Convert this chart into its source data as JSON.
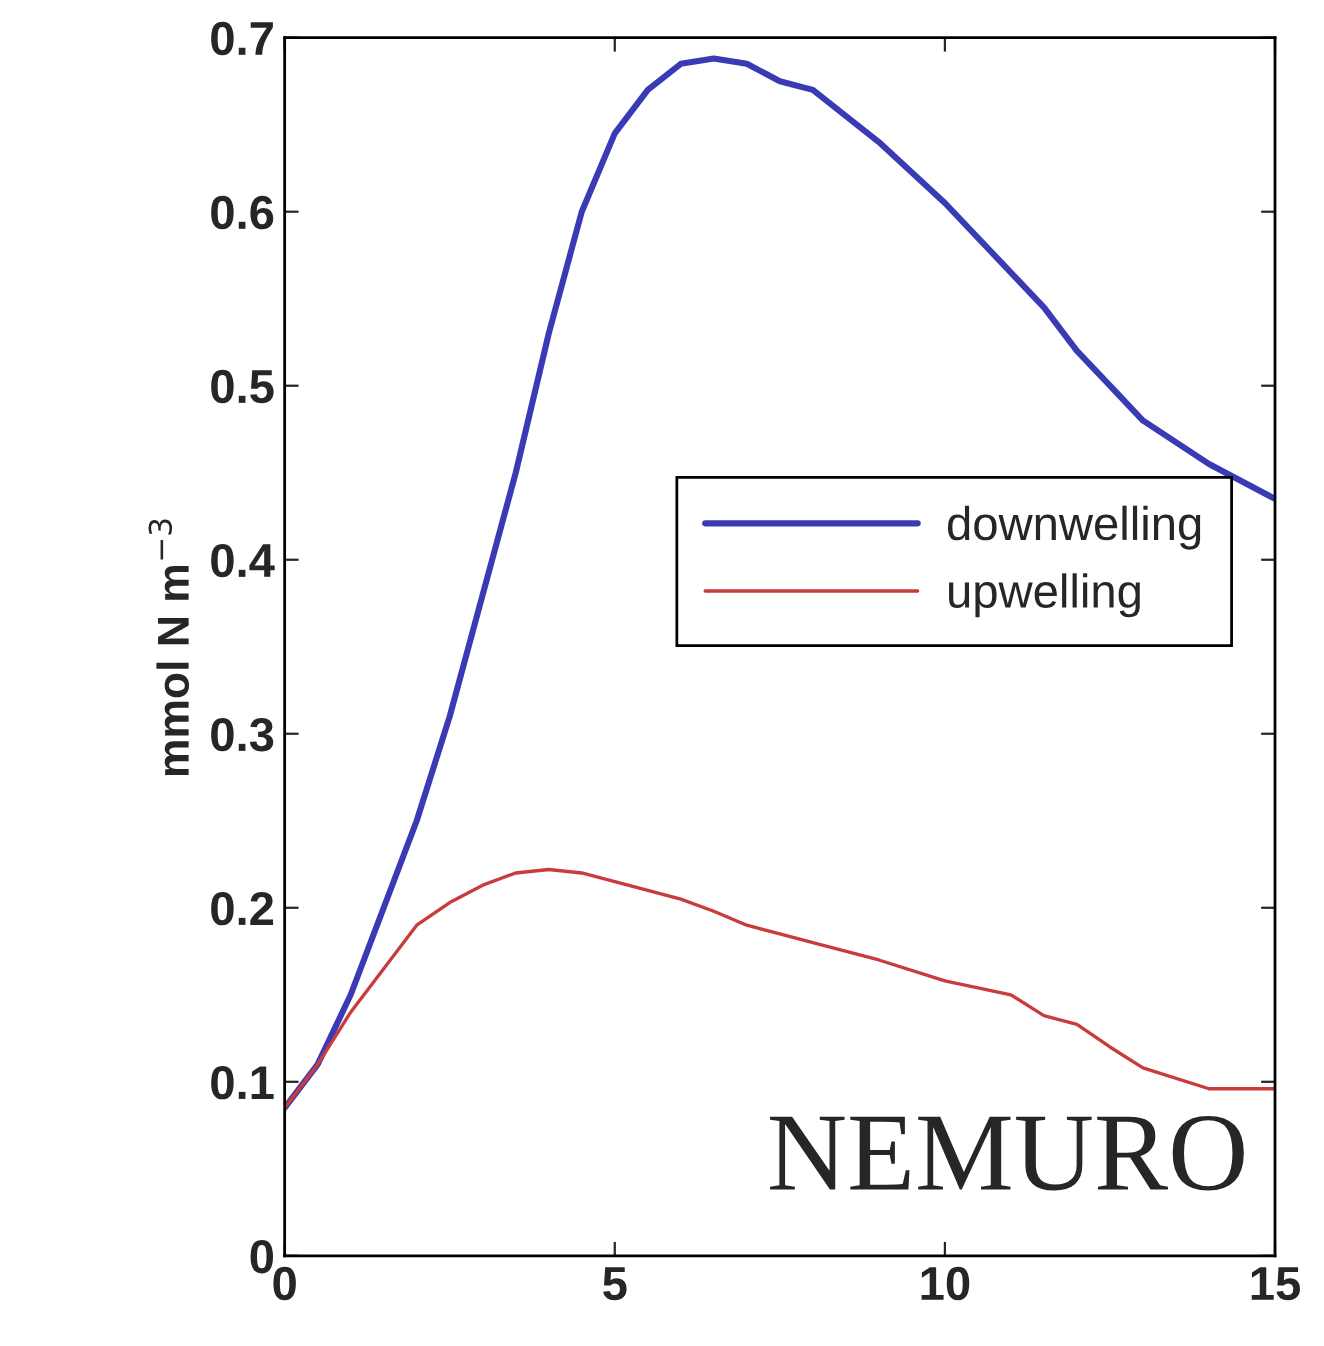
{
  "chart_data": {
    "type": "line",
    "ylabel": "mmol N m$^{−3}$",
    "x": [
      0,
      0.5,
      1,
      1.5,
      2,
      2.5,
      3,
      3.5,
      4,
      4.5,
      5,
      5.5,
      6,
      6.5,
      7,
      7.5,
      8,
      9,
      10,
      11,
      11.5,
      12,
      12.5,
      13,
      14,
      15
    ],
    "series": [
      {
        "name": "downwelling",
        "color": "#3a3ab4",
        "values": [
          0.085,
          0.11,
          0.15,
          0.2,
          0.25,
          0.31,
          0.38,
          0.45,
          0.53,
          0.6,
          0.645,
          0.67,
          0.685,
          0.688,
          0.685,
          0.675,
          0.67,
          0.64,
          0.605,
          0.565,
          0.545,
          0.52,
          0.5,
          0.48,
          0.455,
          0.435
        ]
      },
      {
        "name": "upwelling",
        "color": "#c83c3c",
        "values": [
          0.085,
          0.11,
          0.14,
          0.165,
          0.19,
          0.203,
          0.213,
          0.22,
          0.222,
          0.22,
          0.215,
          0.21,
          0.205,
          0.198,
          0.19,
          0.185,
          0.18,
          0.17,
          0.158,
          0.15,
          0.138,
          0.133,
          0.12,
          0.108,
          0.096,
          0.096
        ]
      }
    ],
    "xlim": [
      0,
      15
    ],
    "xticks": [
      0,
      5,
      10,
      15
    ],
    "ylim": [
      0,
      0.7
    ],
    "yticks": [
      0,
      0.1,
      0.2,
      0.3,
      0.4,
      0.5,
      0.6,
      0.7
    ],
    "legend": "right",
    "grid": false,
    "marker": "none",
    "line_style": "solid",
    "annotations": [
      "NEMURO"
    ]
  }
}
